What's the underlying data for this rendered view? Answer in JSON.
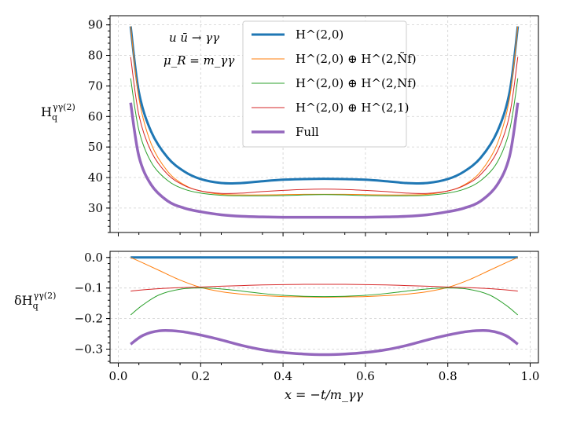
{
  "colors": {
    "H20": "#1f77b4",
    "H20_Nf_tilde": "#ff7f0e",
    "H20_Nf": "#2ca02c",
    "H20_H21": "#d62728",
    "Full": "#9467bd"
  },
  "annotations": {
    "process": "u ū → γγ",
    "scale": "μ_R = m_γγ"
  },
  "chart_data": [
    {
      "type": "line",
      "panel": "top",
      "ylabel": "H_q^{γγ(2)}",
      "xlabel": "",
      "xlim": [
        -0.02,
        1.02
      ],
      "ylim": [
        22,
        93
      ],
      "yticks": [
        30,
        40,
        50,
        60,
        70,
        80,
        90
      ],
      "ytick_labels": [
        "30",
        "40",
        "50",
        "60",
        "70",
        "80",
        "90"
      ],
      "grid": true,
      "legend_position": "top-center",
      "legend": [
        {
          "key": "H20",
          "label": "H^(2,0)"
        },
        {
          "key": "H20_Nf_tilde",
          "label": "H^(2,0) ⊕ H^(2,Ñf)"
        },
        {
          "key": "H20_Nf",
          "label": "H^(2,0) ⊕ H^(2,Nf)"
        },
        {
          "key": "H20_H21",
          "label": "H^(2,0) ⊕ H^(2,1)"
        },
        {
          "key": "Full",
          "label": "Full"
        }
      ],
      "x": [
        0.03,
        0.05,
        0.08,
        0.12,
        0.16,
        0.2,
        0.25,
        0.3,
        0.35,
        0.4,
        0.45,
        0.5,
        0.55,
        0.6,
        0.65,
        0.7,
        0.75,
        0.8,
        0.84,
        0.88,
        0.92,
        0.95,
        0.97
      ],
      "series": [
        {
          "key": "H20",
          "name": "H^(2,0)",
          "width": 3,
          "values": [
            89.5,
            68,
            55,
            46.5,
            42,
            39.5,
            38.2,
            38.2,
            38.8,
            39.3,
            39.5,
            39.6,
            39.5,
            39.3,
            38.8,
            38.2,
            38.2,
            39.5,
            42,
            46.5,
            55,
            68,
            89.5
          ]
        },
        {
          "key": "H20_Nf_tilde",
          "name": "H^(2,0) ⊕ H^(2,Ñf)",
          "width": 1,
          "values": [
            89.5,
            66,
            51,
            42,
            37.6,
            35.6,
            34.5,
            34.3,
            34.3,
            34.4,
            34.5,
            34.5,
            34.5,
            34.4,
            34.3,
            34.3,
            34.5,
            35.6,
            37.6,
            42,
            51,
            66,
            89.5
          ]
        },
        {
          "key": "H20_Nf",
          "name": "H^(2,0) ⊕ H^(2,Nf)",
          "width": 1,
          "values": [
            72.5,
            55.5,
            45,
            39,
            36.2,
            34.9,
            34.2,
            34,
            34,
            34.1,
            34.3,
            34.4,
            34.3,
            34.1,
            34,
            34,
            34.2,
            34.9,
            36.2,
            39,
            45,
            55.5,
            72.5
          ]
        },
        {
          "key": "H20_H21",
          "name": "H^(2,0) ⊕ H^(2,1)",
          "width": 1,
          "values": [
            79.5,
            60.5,
            48.5,
            41,
            37.4,
            35.6,
            34.8,
            34.9,
            35.4,
            35.8,
            36.1,
            36.2,
            36.1,
            35.8,
            35.4,
            34.9,
            34.8,
            35.6,
            37.4,
            41,
            48.5,
            60.5,
            79.5
          ]
        },
        {
          "key": "Full",
          "name": "Full",
          "width": 3.5,
          "values": [
            64.5,
            47,
            37.6,
            32.3,
            30,
            28.8,
            27.8,
            27.3,
            27.1,
            27,
            27,
            27,
            27,
            27,
            27.1,
            27.3,
            27.8,
            28.8,
            30,
            32.3,
            37.6,
            47,
            64.5
          ]
        }
      ]
    },
    {
      "type": "line",
      "panel": "bottom",
      "ylabel": "δH_q^{γγ(2)}",
      "xlabel": "x = −t/m_γγ",
      "xlim": [
        -0.02,
        1.02
      ],
      "ylim": [
        -0.345,
        0.02
      ],
      "xticks": [
        0.0,
        0.2,
        0.4,
        0.6,
        0.8,
        1.0
      ],
      "xtick_labels": [
        "0.0",
        "0.2",
        "0.4",
        "0.6",
        "0.8",
        "1.0"
      ],
      "yticks": [
        0.0,
        -0.1,
        -0.2,
        -0.3
      ],
      "ytick_labels": [
        "0.0",
        "−0.1",
        "−0.2",
        "−0.3"
      ],
      "grid": true,
      "x": [
        0.03,
        0.06,
        0.1,
        0.15,
        0.2,
        0.25,
        0.3,
        0.35,
        0.4,
        0.45,
        0.5,
        0.55,
        0.6,
        0.65,
        0.7,
        0.75,
        0.8,
        0.85,
        0.9,
        0.94,
        0.97
      ],
      "series": [
        {
          "key": "H20",
          "name": "H^(2,0)",
          "width": 3,
          "values": [
            0,
            0,
            0,
            0,
            0,
            0,
            0,
            0,
            0,
            0,
            0,
            0,
            0,
            0,
            0,
            0,
            0,
            0,
            0,
            0,
            0
          ]
        },
        {
          "key": "H20_Nf_tilde",
          "name": "H^(2,0) ⊕ H^(2,Ñf)",
          "width": 1,
          "values": [
            0,
            -0.018,
            -0.043,
            -0.074,
            -0.098,
            -0.112,
            -0.12,
            -0.125,
            -0.128,
            -0.129,
            -0.13,
            -0.129,
            -0.128,
            -0.125,
            -0.12,
            -0.112,
            -0.098,
            -0.074,
            -0.043,
            -0.018,
            0
          ]
        },
        {
          "key": "H20_Nf",
          "name": "H^(2,0) ⊕ H^(2,Nf)",
          "width": 1,
          "values": [
            -0.188,
            -0.155,
            -0.122,
            -0.104,
            -0.1,
            -0.103,
            -0.11,
            -0.118,
            -0.124,
            -0.127,
            -0.128,
            -0.127,
            -0.124,
            -0.118,
            -0.11,
            -0.103,
            -0.1,
            -0.104,
            -0.122,
            -0.155,
            -0.188
          ]
        },
        {
          "key": "H20_H21",
          "name": "H^(2,0) ⊕ H^(2,1)",
          "width": 1,
          "values": [
            -0.11,
            -0.106,
            -0.102,
            -0.099,
            -0.097,
            -0.094,
            -0.092,
            -0.09,
            -0.089,
            -0.088,
            -0.088,
            -0.088,
            -0.089,
            -0.09,
            -0.092,
            -0.094,
            -0.097,
            -0.099,
            -0.102,
            -0.106,
            -0.11
          ]
        },
        {
          "key": "Full",
          "name": "Full",
          "width": 3.5,
          "values": [
            -0.284,
            -0.255,
            -0.24,
            -0.242,
            -0.254,
            -0.27,
            -0.288,
            -0.302,
            -0.311,
            -0.316,
            -0.318,
            -0.316,
            -0.311,
            -0.302,
            -0.288,
            -0.27,
            -0.254,
            -0.242,
            -0.24,
            -0.255,
            -0.284
          ]
        }
      ]
    }
  ]
}
